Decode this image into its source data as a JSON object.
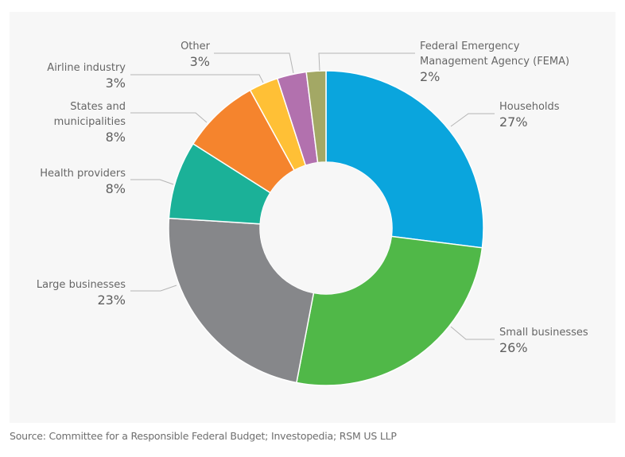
{
  "chart_data": {
    "type": "pie",
    "variant": "donut",
    "title": "",
    "unit": "%",
    "start": "top",
    "direction": "clockwise",
    "slices": [
      {
        "label": "Households",
        "label_lines": [
          "Households"
        ],
        "value": 27,
        "display": "27%",
        "color": "#0aa5dd",
        "label_side": "right"
      },
      {
        "label": "Small businesses",
        "label_lines": [
          "Small businesses"
        ],
        "value": 26,
        "display": "26%",
        "color": "#50b848",
        "label_side": "right"
      },
      {
        "label": "Large businesses",
        "label_lines": [
          "Large businesses"
        ],
        "value": 23,
        "display": "23%",
        "color": "#86878a",
        "label_side": "left"
      },
      {
        "label": "Health providers",
        "label_lines": [
          "Health providers"
        ],
        "value": 8,
        "display": "8%",
        "color": "#1bb198",
        "label_side": "left"
      },
      {
        "label": "States and municipalities",
        "label_lines": [
          "States and",
          "municipalities"
        ],
        "value": 8,
        "display": "8%",
        "color": "#f5842d",
        "label_side": "left"
      },
      {
        "label": "Airline industry",
        "label_lines": [
          "Airline industry"
        ],
        "value": 3,
        "display": "3%",
        "color": "#ffc036",
        "label_side": "left"
      },
      {
        "label": "Other",
        "label_lines": [
          "Other"
        ],
        "value": 3,
        "display": "3%",
        "color": "#b271ae",
        "label_side": "left"
      },
      {
        "label": "Federal Emergency Management Agency (FEMA)",
        "label_lines": [
          "Federal Emergency",
          "Management Agency (FEMA)"
        ],
        "value": 2,
        "display": "2%",
        "color": "#a3a865",
        "label_side": "right"
      }
    ],
    "legend": "none (direct labels with leader lines)"
  },
  "source": "Source: Committee for a Responsible Federal Budget; Investopedia; RSM US LLP"
}
